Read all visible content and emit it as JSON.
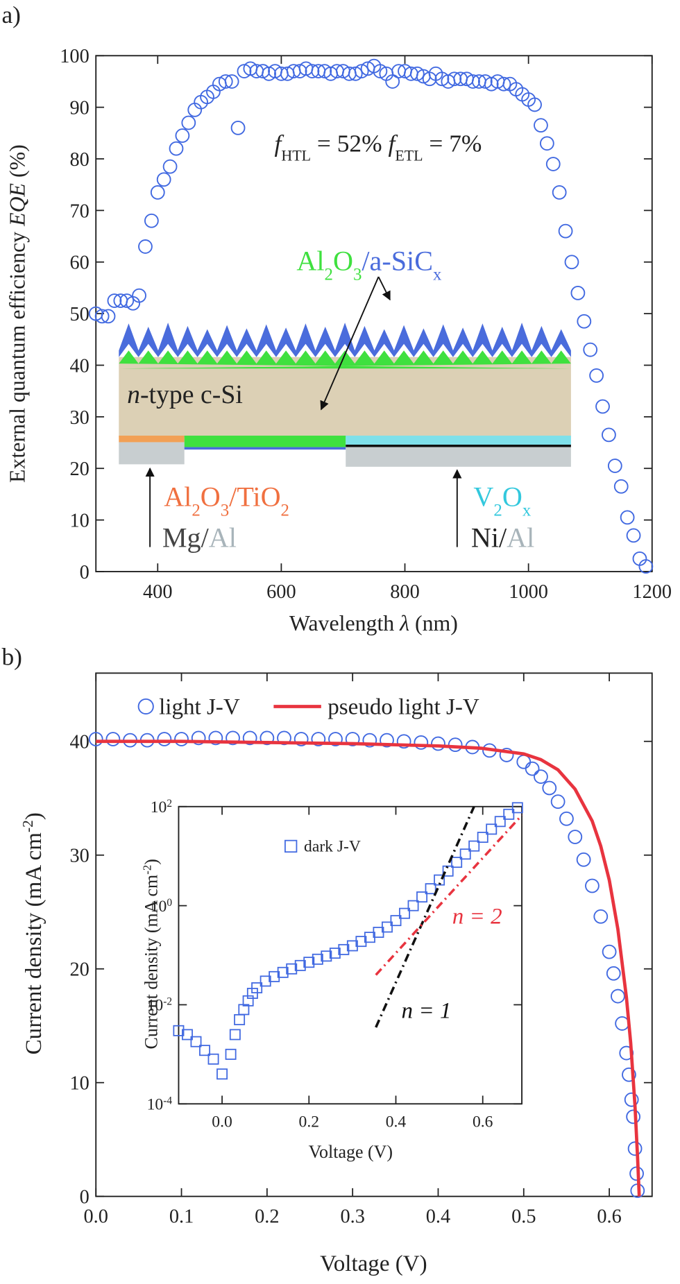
{
  "chart_data": [
    {
      "panel": "a)",
      "type": "scatter",
      "xlabel": [
        "Wavelength ",
        "λ",
        " (nm)"
      ],
      "ylabel": [
        "External quantum efficiency ",
        "EQE",
        " (%)"
      ],
      "xlim": [
        300,
        1200
      ],
      "ylim": [
        0,
        100
      ],
      "xticks": [
        400,
        600,
        800,
        1000,
        1200
      ],
      "yticks": [
        0,
        10,
        20,
        30,
        40,
        50,
        60,
        70,
        80,
        90,
        100
      ],
      "series": [
        {
          "marker": "circle",
          "color": "#4169e1",
          "x": [
            300,
            310,
            320,
            330,
            340,
            350,
            360,
            370,
            380,
            390,
            400,
            410,
            420,
            430,
            440,
            450,
            460,
            470,
            480,
            490,
            500,
            510,
            520,
            530,
            540,
            550,
            560,
            570,
            580,
            590,
            600,
            610,
            620,
            630,
            640,
            650,
            660,
            670,
            680,
            690,
            700,
            710,
            720,
            730,
            740,
            750,
            760,
            770,
            780,
            790,
            800,
            810,
            820,
            830,
            840,
            850,
            860,
            870,
            880,
            890,
            900,
            910,
            920,
            930,
            940,
            950,
            960,
            970,
            980,
            990,
            1000,
            1010,
            1020,
            1030,
            1040,
            1050,
            1060,
            1070,
            1080,
            1090,
            1100,
            1110,
            1120,
            1130,
            1140,
            1150,
            1160,
            1170,
            1180,
            1190
          ],
          "values": [
            50,
            49.5,
            49.5,
            52.5,
            52.5,
            52.5,
            52,
            53.5,
            63,
            68,
            73.5,
            76,
            78.5,
            82,
            84.5,
            87,
            89.5,
            91,
            92,
            93,
            94.5,
            95,
            95,
            86,
            97,
            97.5,
            97,
            97,
            96.5,
            97,
            96.5,
            96.5,
            97,
            97,
            97.5,
            97,
            97,
            97,
            96.5,
            97,
            97,
            96.5,
            96.5,
            97,
            97.5,
            98,
            97,
            96.5,
            95,
            97,
            97,
            96.5,
            96.5,
            96,
            95.5,
            96.5,
            95.5,
            95,
            95.5,
            95.5,
            95.5,
            95,
            95,
            95,
            94.5,
            95,
            94.5,
            94.5,
            93.5,
            92.5,
            91.5,
            90.5,
            86.5,
            83,
            79,
            73.5,
            66,
            60,
            54,
            48.5,
            43,
            38,
            32,
            26.5,
            20.5,
            16.5,
            10.5,
            7,
            2.5,
            1
          ]
        }
      ],
      "annotations": [
        [
          "f",
          "HTL",
          " = 52% ",
          "f",
          "ETL",
          " = 7%"
        ],
        [
          "Al",
          "2",
          "O",
          "3",
          "/a-SiC",
          "x"
        ],
        [
          "n",
          "-type c-Si"
        ],
        [
          "Al",
          "2",
          "O",
          "3",
          "/TiO",
          "2"
        ],
        [
          "Mg/",
          "Al"
        ],
        [
          "V",
          "2",
          "O",
          "x"
        ],
        [
          "Ni/",
          "Al"
        ]
      ]
    },
    {
      "panel": "b)",
      "type": "scatter",
      "xlabel": "Voltage (V)",
      "ylabel": [
        "Current density (mA cm",
        "-2",
        ")"
      ],
      "xlim": [
        0,
        0.65
      ],
      "ylim": [
        0,
        46
      ],
      "xticks": [
        {
          "value": 0,
          "label": "0.0"
        },
        0.1,
        0.2,
        0.3,
        0.4,
        0.5,
        0.6
      ],
      "yticks": [
        0,
        10,
        20,
        30,
        40
      ],
      "series": [
        {
          "name": "light J-V",
          "marker": "circle",
          "color": "#4169e1",
          "x": [
            0,
            0.02,
            0.04,
            0.06,
            0.08,
            0.1,
            0.12,
            0.14,
            0.16,
            0.18,
            0.2,
            0.22,
            0.24,
            0.26,
            0.28,
            0.3,
            0.32,
            0.34,
            0.36,
            0.38,
            0.4,
            0.42,
            0.44,
            0.46,
            0.48,
            0.5,
            0.51,
            0.52,
            0.53,
            0.54,
            0.55,
            0.56,
            0.57,
            0.58,
            0.59,
            0.6,
            0.605,
            0.61,
            0.615,
            0.62,
            0.623,
            0.626,
            0.628,
            0.63,
            0.632,
            0.633
          ],
          "values": [
            40.2,
            40.2,
            40.1,
            40.1,
            40.2,
            40.2,
            40.3,
            40.3,
            40.3,
            40.3,
            40.3,
            40.3,
            40.2,
            40.2,
            40.2,
            40.2,
            40.1,
            40.1,
            40.0,
            39.9,
            39.8,
            39.7,
            39.5,
            39.2,
            38.8,
            38.2,
            37.6,
            36.9,
            35.9,
            34.7,
            33.2,
            31.6,
            29.6,
            27.3,
            24.6,
            21.5,
            19.6,
            17.6,
            15.2,
            12.6,
            10.7,
            8.5,
            7.0,
            4.2,
            2.0,
            0.5
          ]
        },
        {
          "name": "pseudo light J-V",
          "line": "solid",
          "color": "#e8343f",
          "x": [
            0,
            0.1,
            0.2,
            0.3,
            0.4,
            0.45,
            0.5,
            0.52,
            0.54,
            0.56,
            0.58,
            0.59,
            0.6,
            0.61,
            0.62,
            0.625,
            0.63,
            0.633,
            0.635
          ],
          "values": [
            40.0,
            40.0,
            39.9,
            39.8,
            39.6,
            39.4,
            38.9,
            38.4,
            37.5,
            35.8,
            33.0,
            30.8,
            27.8,
            23.5,
            17.5,
            13.5,
            8.0,
            3.5,
            0
          ]
        }
      ]
    },
    {
      "type": "scatter",
      "xlabel": "Voltage (V)",
      "ylabel": [
        "Current density (mA cm",
        "-2",
        ")"
      ],
      "xlim": [
        -0.1,
        0.69
      ],
      "ylim": [
        0.0001,
        100
      ],
      "ylog": true,
      "xticks": [
        {
          "value": 0,
          "label": "0.0"
        },
        0.2,
        0.4,
        0.6
      ],
      "yticks": [
        {
          "value": 0.0001,
          "label": [
            "10",
            "-4"
          ]
        },
        {
          "value": 0.01,
          "label": [
            "10",
            "-2"
          ]
        },
        {
          "value": 1,
          "label": [
            "10",
            "0"
          ]
        },
        {
          "value": 100,
          "label": [
            "10",
            "2"
          ]
        }
      ],
      "series": [
        {
          "name": "dark J-V",
          "marker": "square",
          "color": "#4169e1",
          "x": [
            -0.1,
            -0.08,
            -0.06,
            -0.04,
            -0.02,
            0,
            0.02,
            0.03,
            0.04,
            0.05,
            0.06,
            0.07,
            0.08,
            0.1,
            0.12,
            0.14,
            0.16,
            0.18,
            0.2,
            0.22,
            0.24,
            0.26,
            0.28,
            0.3,
            0.32,
            0.34,
            0.36,
            0.38,
            0.4,
            0.42,
            0.44,
            0.46,
            0.48,
            0.5,
            0.52,
            0.54,
            0.56,
            0.58,
            0.6,
            0.62,
            0.64,
            0.66,
            0.68
          ],
          "values": [
            0.003,
            0.0025,
            0.0018,
            0.0012,
            0.0008,
            0.0004,
            0.001,
            0.0025,
            0.005,
            0.008,
            0.012,
            0.017,
            0.022,
            0.03,
            0.037,
            0.045,
            0.053,
            0.062,
            0.072,
            0.083,
            0.096,
            0.11,
            0.13,
            0.155,
            0.19,
            0.23,
            0.29,
            0.37,
            0.5,
            0.7,
            1.0,
            1.5,
            2.2,
            3.3,
            5,
            7.5,
            11,
            16,
            24,
            35,
            50,
            70,
            95
          ]
        },
        {
          "name": "n = 1",
          "line": "dashdot",
          "color": "#111111",
          "x": [
            0.354,
            0.58
          ],
          "values": [
            0.0035,
            100
          ]
        },
        {
          "name": "n = 2",
          "line": "dashdot",
          "color": "#e8343f",
          "x": [
            0.354,
            0.69
          ],
          "values": [
            0.04,
            67
          ]
        }
      ]
    }
  ]
}
